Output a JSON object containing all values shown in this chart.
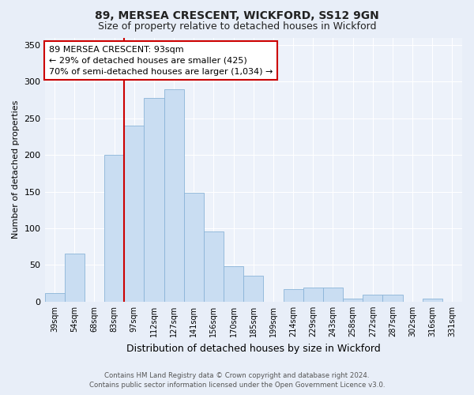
{
  "title1": "89, MERSEA CRESCENT, WICKFORD, SS12 9GN",
  "title2": "Size of property relative to detached houses in Wickford",
  "xlabel": "Distribution of detached houses by size in Wickford",
  "ylabel": "Number of detached properties",
  "categories": [
    "39sqm",
    "54sqm",
    "68sqm",
    "83sqm",
    "97sqm",
    "112sqm",
    "127sqm",
    "141sqm",
    "156sqm",
    "170sqm",
    "185sqm",
    "199sqm",
    "214sqm",
    "229sqm",
    "243sqm",
    "258sqm",
    "272sqm",
    "287sqm",
    "302sqm",
    "316sqm",
    "331sqm"
  ],
  "values": [
    12,
    65,
    0,
    200,
    240,
    278,
    290,
    148,
    96,
    48,
    35,
    0,
    17,
    19,
    19,
    4,
    9,
    9,
    0,
    4,
    0
  ],
  "bar_color": "#c9ddf2",
  "bar_edge_color": "#8ab4d8",
  "vline_color": "#cc0000",
  "vline_index": 4,
  "annotation_text": "89 MERSEA CRESCENT: 93sqm\n← 29% of detached houses are smaller (425)\n70% of semi-detached houses are larger (1,034) →",
  "annotation_box_facecolor": "#ffffff",
  "annotation_box_edgecolor": "#cc0000",
  "footer1": "Contains HM Land Registry data © Crown copyright and database right 2024.",
  "footer2": "Contains public sector information licensed under the Open Government Licence v3.0.",
  "bg_color": "#e8eef8",
  "plot_bg_color": "#edf2fa",
  "grid_color": "#ffffff",
  "ylim": [
    0,
    360
  ],
  "yticks": [
    0,
    50,
    100,
    150,
    200,
    250,
    300,
    350
  ],
  "title1_fontsize": 10,
  "title2_fontsize": 9
}
